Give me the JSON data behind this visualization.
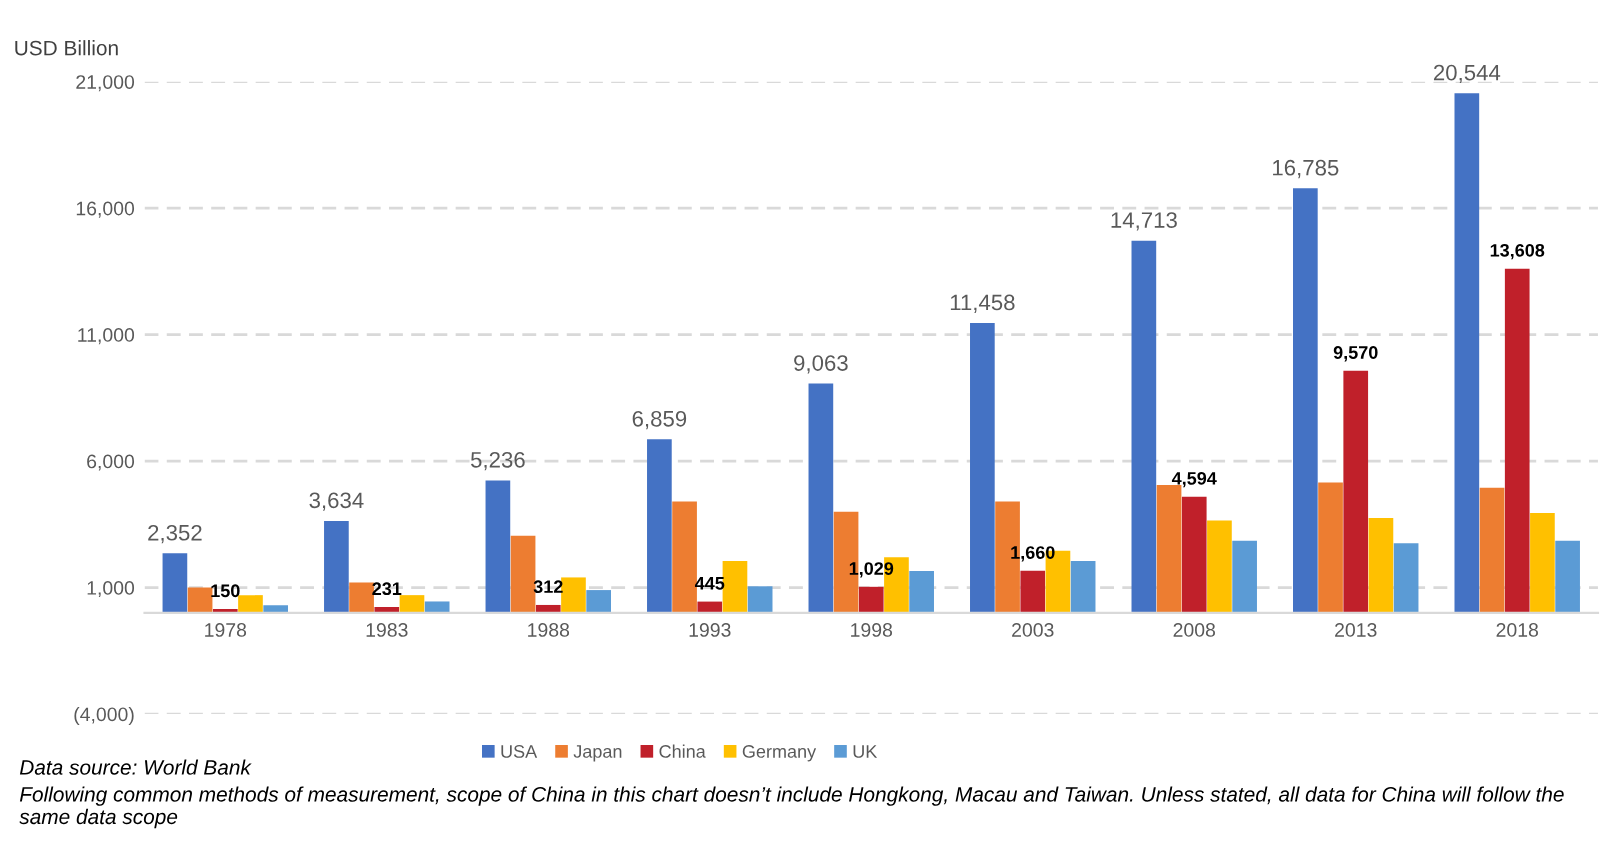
{
  "chart_data": {
    "type": "bar",
    "ylabel": "USD Billion",
    "categories": [
      "1978",
      "1983",
      "1988",
      "1993",
      "1998",
      "2003",
      "2008",
      "2013",
      "2018"
    ],
    "series": [
      {
        "name": "USA",
        "color": "#4472c4",
        "values": [
          2352,
          3634,
          5236,
          6859,
          9063,
          11458,
          14713,
          16785,
          20544
        ],
        "value_labels": [
          "2,352",
          "3,634",
          "5,236",
          "6,859",
          "9,063",
          "11,458",
          "14,713",
          "16,785",
          "20,544"
        ]
      },
      {
        "name": "Japan",
        "color": "#ed7d31",
        "values": [
          1000,
          1200,
          3050,
          4400,
          4000,
          4400,
          5050,
          5150,
          4950
        ]
      },
      {
        "name": "China",
        "color": "#c0202a",
        "values": [
          150,
          231,
          312,
          445,
          1029,
          1660,
          4594,
          9570,
          13608
        ],
        "value_labels": [
          "150",
          "231",
          "312",
          "445",
          "1,029",
          "1,660",
          "4,594",
          "9,570",
          "13,608"
        ]
      },
      {
        "name": "Germany",
        "color": "#ffc000",
        "values": [
          700,
          700,
          1400,
          2050,
          2200,
          2450,
          3650,
          3750,
          3950
        ]
      },
      {
        "name": "UK",
        "color": "#5b9bd5",
        "values": [
          300,
          450,
          900,
          1050,
          1650,
          2050,
          2850,
          2750,
          2850
        ]
      }
    ],
    "ylim": [
      -4000,
      21000
    ],
    "yticks": [
      {
        "value": -4000,
        "label": "(4,000)"
      },
      {
        "value": 1000,
        "label": "1,000"
      },
      {
        "value": 6000,
        "label": "6,000"
      },
      {
        "value": 11000,
        "label": "11,000"
      },
      {
        "value": 16000,
        "label": "16,000"
      },
      {
        "value": 21000,
        "label": "21,000"
      }
    ],
    "grid": "y",
    "legend": "bottom",
    "annotations": [
      "Data source: World Bank",
      "Following common methods of measurement, scope of China in this chart doesn’t include Hongkong, Macau and Taiwan. Unless stated, all data for China will follow the same data scope"
    ]
  }
}
